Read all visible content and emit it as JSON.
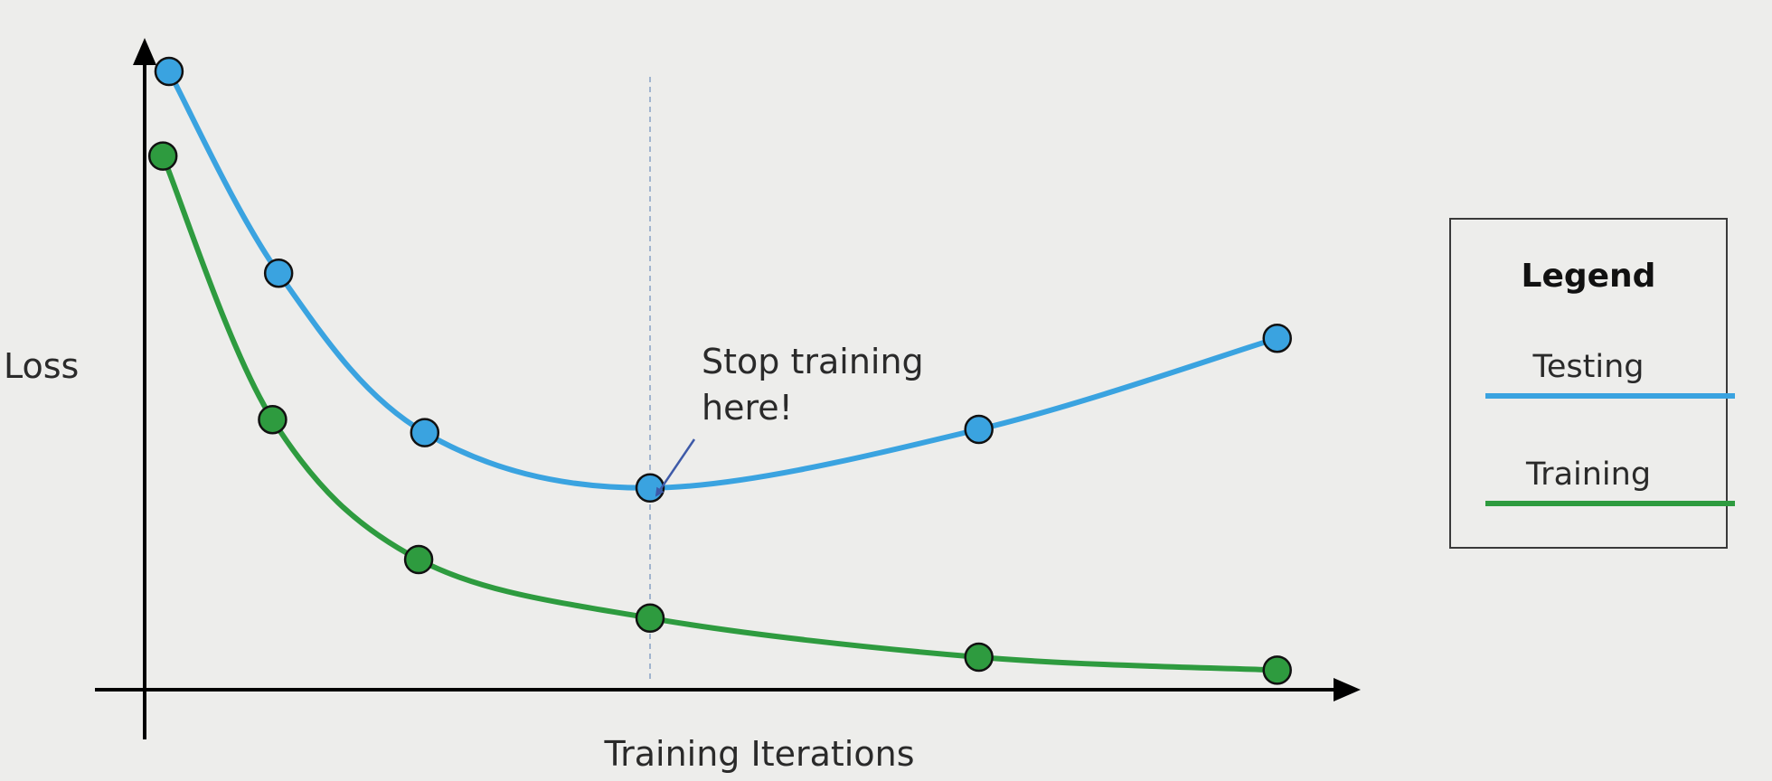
{
  "chart_data": {
    "type": "line",
    "xlabel": "Training Iterations",
    "ylabel": "Loss",
    "xlim": [
      0,
      100
    ],
    "ylim": [
      0,
      100
    ],
    "grid": false,
    "legend_position": "right",
    "legend": {
      "title": "Legend"
    },
    "series": [
      {
        "name": "Testing",
        "color": "#3aa3e0",
        "x": [
          2,
          11,
          23,
          41.5,
          68.5,
          93
        ],
        "y": [
          95,
          64,
          39.5,
          31,
          40,
          54
        ]
      },
      {
        "name": "Training",
        "color": "#2e9b3f",
        "x": [
          1.5,
          10.5,
          22.5,
          41.5,
          68.5,
          93
        ],
        "y": [
          82,
          41.5,
          20,
          11,
          5,
          3
        ]
      }
    ],
    "annotations": [
      {
        "text_line1": "Stop training",
        "text_line2": "here!",
        "x": 41.5,
        "y": 31
      }
    ],
    "vline": {
      "x": 41.5,
      "style": "dashed"
    }
  }
}
